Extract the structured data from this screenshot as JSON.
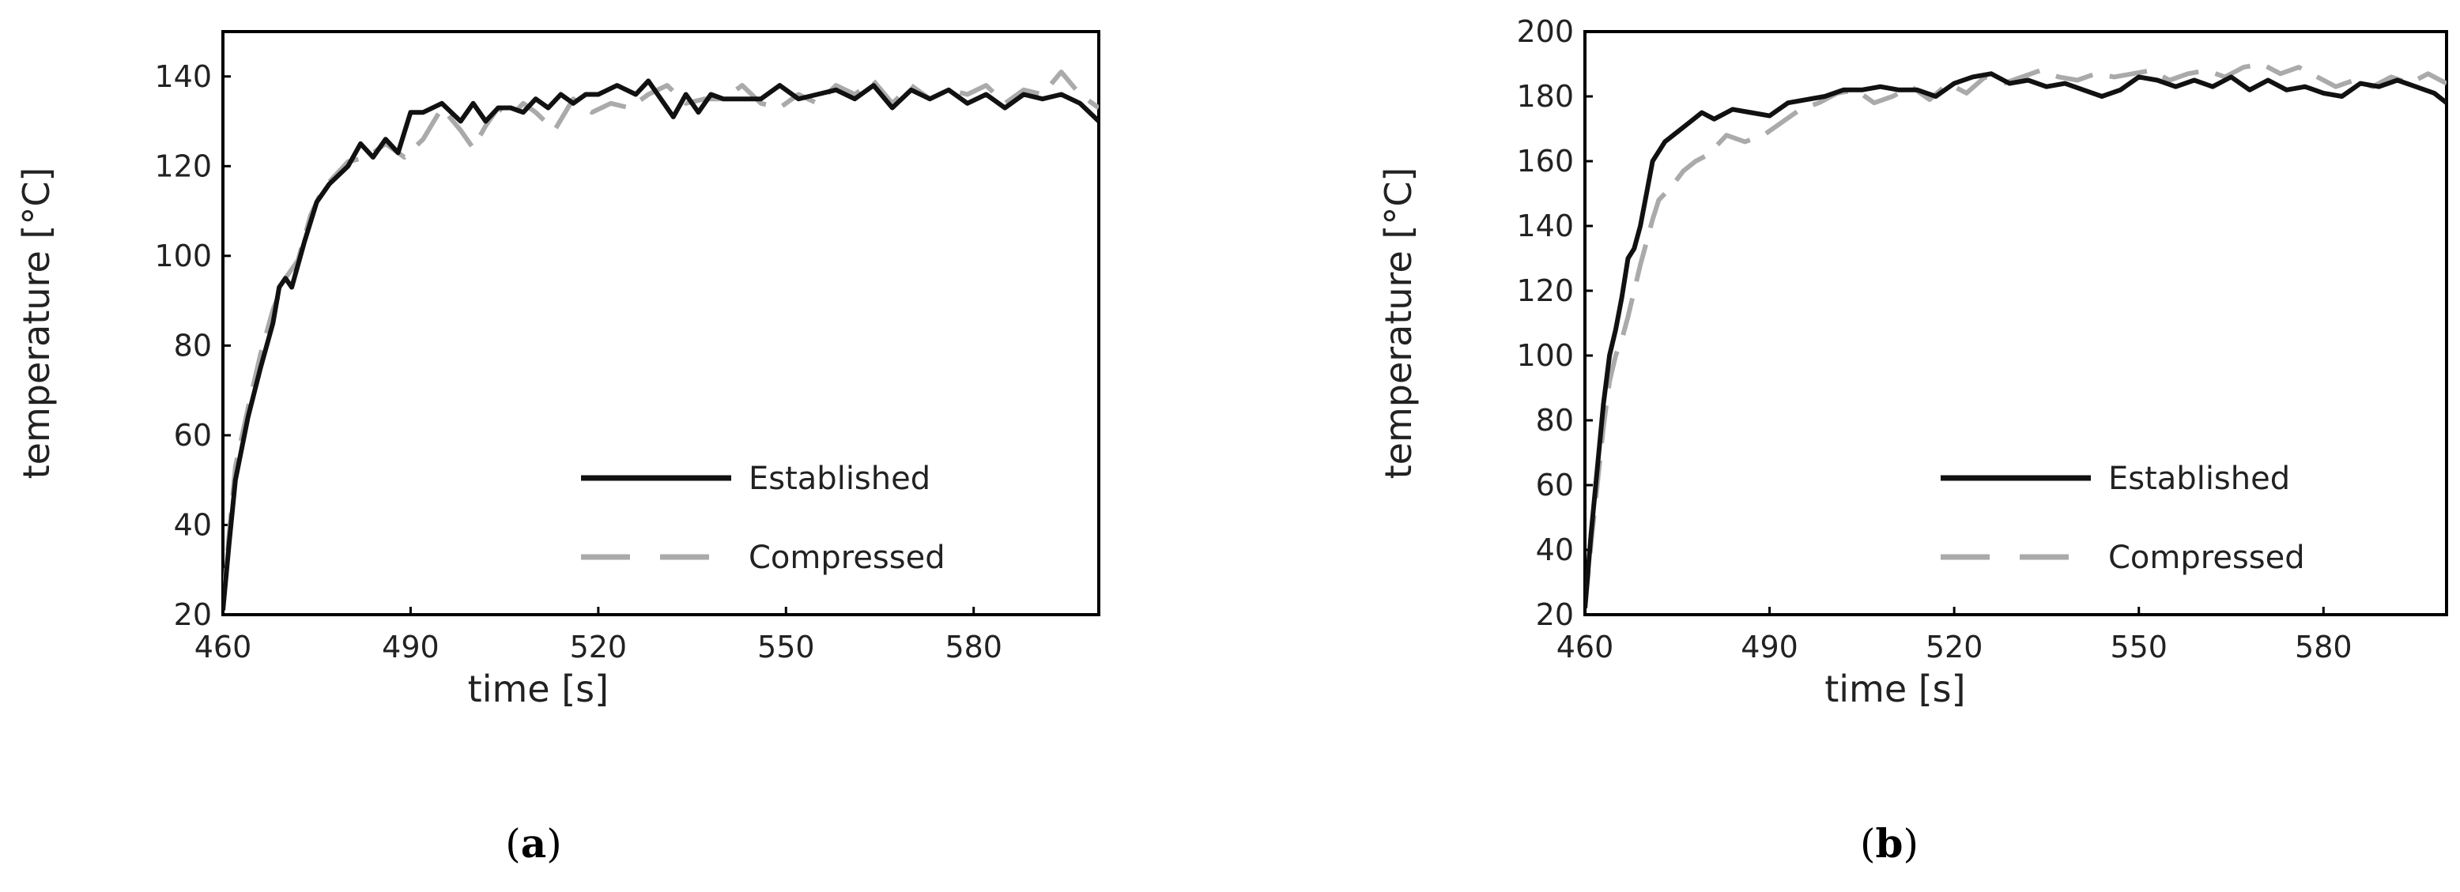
{
  "chart_data": [
    {
      "type": "line",
      "panel_label": "a",
      "xlabel": "time [s]",
      "ylabel": "temperature [°C]",
      "xlim": [
        460,
        600
      ],
      "ylim": [
        20,
        150
      ],
      "xticks": [
        460,
        490,
        520,
        550,
        580
      ],
      "yticks": [
        20,
        40,
        60,
        80,
        100,
        120,
        140
      ],
      "grid": false,
      "legend_position": "bottom-right",
      "series": [
        {
          "name": "Established",
          "color": "#111111",
          "style": "solid",
          "x": [
            460,
            461,
            462,
            464,
            466,
            468,
            469,
            470,
            471,
            473,
            475,
            477,
            480,
            482,
            484,
            486,
            488,
            490,
            492,
            495,
            498,
            500,
            502,
            504,
            506,
            508,
            510,
            512,
            514,
            516,
            518,
            520,
            523,
            526,
            528,
            530,
            532,
            534,
            536,
            538,
            540,
            543,
            546,
            549,
            552,
            555,
            558,
            561,
            564,
            567,
            570,
            573,
            576,
            579,
            582,
            585,
            588,
            591,
            594,
            597,
            600
          ],
          "y": [
            21,
            36,
            50,
            64,
            75,
            85,
            93,
            95,
            93,
            103,
            112,
            116,
            120,
            125,
            122,
            126,
            123,
            132,
            132,
            134,
            130,
            134,
            130,
            133,
            133,
            132,
            135,
            133,
            136,
            134,
            136,
            136,
            138,
            136,
            139,
            135,
            131,
            136,
            132,
            136,
            135,
            135,
            135,
            138,
            135,
            136,
            137,
            135,
            138,
            133,
            137,
            135,
            137,
            134,
            136,
            133,
            136,
            135,
            136,
            134,
            130
          ]
        },
        {
          "name": "Compressed",
          "color": "#aaaaaa",
          "style": "dashed",
          "x": [
            460,
            461,
            462,
            464,
            466,
            468,
            470,
            472,
            474,
            476,
            478,
            480,
            483,
            486,
            489,
            492,
            495,
            498,
            500,
            502,
            504,
            506,
            508,
            510,
            513,
            516,
            519,
            522,
            525,
            528,
            531,
            534,
            537,
            540,
            543,
            546,
            549,
            552,
            555,
            558,
            561,
            564,
            567,
            570,
            573,
            576,
            579,
            582,
            585,
            588,
            591,
            594,
            597,
            600
          ],
          "y": [
            22,
            38,
            53,
            66,
            78,
            88,
            95,
            99,
            109,
            115,
            118,
            121,
            122,
            125,
            122,
            126,
            133,
            128,
            124,
            129,
            133,
            131,
            134,
            132,
            128,
            135,
            132,
            134,
            133,
            136,
            138,
            134,
            135,
            135,
            138,
            134,
            133,
            136,
            134,
            138,
            136,
            139,
            134,
            138,
            135,
            137,
            136,
            138,
            134,
            137,
            136,
            141,
            136,
            133
          ]
        }
      ]
    },
    {
      "type": "line",
      "panel_label": "b",
      "xlabel": "time [s]",
      "ylabel": "temperature [°C]",
      "xlim": [
        460,
        600
      ],
      "ylim": [
        20,
        200
      ],
      "xticks": [
        460,
        490,
        520,
        550,
        580
      ],
      "yticks": [
        20,
        40,
        60,
        80,
        100,
        120,
        140,
        160,
        180,
        200
      ],
      "grid": false,
      "legend_position": "bottom-right",
      "series": [
        {
          "name": "Established",
          "color": "#111111",
          "style": "solid",
          "x": [
            460,
            461,
            462,
            463,
            464,
            465,
            466,
            467,
            468,
            469,
            470,
            471,
            472,
            473,
            475,
            477,
            479,
            481,
            484,
            487,
            490,
            493,
            496,
            499,
            502,
            505,
            508,
            511,
            514,
            517,
            520,
            523,
            526,
            529,
            532,
            535,
            538,
            541,
            544,
            547,
            550,
            553,
            556,
            559,
            562,
            565,
            568,
            571,
            574,
            577,
            580,
            583,
            586,
            589,
            592,
            595,
            598,
            600
          ],
          "y": [
            22,
            45,
            65,
            85,
            100,
            108,
            118,
            130,
            133,
            140,
            150,
            160,
            163,
            166,
            169,
            172,
            175,
            173,
            176,
            175,
            174,
            178,
            179,
            180,
            182,
            182,
            183,
            182,
            182,
            180,
            184,
            186,
            187,
            184,
            185,
            183,
            184,
            182,
            180,
            182,
            186,
            185,
            183,
            185,
            183,
            186,
            182,
            185,
            182,
            183,
            181,
            180,
            184,
            183,
            185,
            183,
            181,
            178
          ]
        },
        {
          "name": "Compressed",
          "color": "#aaaaaa",
          "style": "dashed",
          "x": [
            460,
            461,
            462,
            463,
            464,
            465,
            466,
            467,
            468,
            469,
            470,
            471,
            472,
            474,
            476,
            478,
            480,
            483,
            486,
            489,
            492,
            495,
            498,
            501,
            504,
            507,
            510,
            513,
            516,
            519,
            522,
            525,
            528,
            531,
            534,
            537,
            540,
            543,
            546,
            549,
            552,
            555,
            558,
            561,
            564,
            567,
            570,
            573,
            576,
            579,
            582,
            585,
            588,
            591,
            594,
            597,
            600
          ],
          "y": [
            22,
            42,
            60,
            78,
            92,
            100,
            105,
            112,
            120,
            128,
            135,
            142,
            148,
            152,
            157,
            160,
            162,
            168,
            166,
            168,
            172,
            176,
            178,
            181,
            182,
            178,
            180,
            183,
            179,
            184,
            181,
            186,
            184,
            186,
            188,
            186,
            185,
            187,
            186,
            187,
            188,
            185,
            187,
            188,
            186,
            189,
            190,
            187,
            189,
            186,
            183,
            185,
            183,
            186,
            184,
            187,
            184
          ]
        }
      ]
    }
  ]
}
